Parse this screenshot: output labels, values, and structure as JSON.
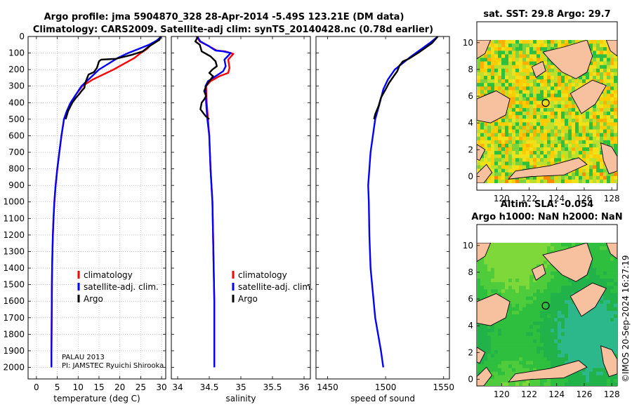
{
  "chart_data": [
    {
      "type": "line",
      "panel": "temperature",
      "title_line1": "Argo profile: jma 5904870_328 28-Apr-2014 -5.49S 123.21E (DM data)",
      "title_line2": "Climatology: CARS2009. Satellite-adj clim: synTS_20140428.nc (0.78d earlier)",
      "xlabel": "temperature (deg C)",
      "xlim": [
        -2,
        31
      ],
      "xticks": [
        0,
        5,
        10,
        15,
        20,
        25,
        30
      ],
      "ylim": [
        0,
        2070
      ],
      "yticks": [
        0,
        100,
        200,
        300,
        400,
        500,
        600,
        700,
        800,
        900,
        1000,
        1100,
        1200,
        1300,
        1400,
        1500,
        1600,
        1700,
        1800,
        1900,
        2000
      ],
      "grid": true,
      "legend": [
        "climatology",
        "satellite-adj. clim.",
        "Argo"
      ],
      "legend_colors": [
        "#ff0000",
        "#0000ff",
        "#000000"
      ],
      "annotation_1": "PALAU 2013",
      "annotation_2": "PI: JAMSTEC Ryuichi Shirooka",
      "series": [
        {
          "name": "climatology",
          "color": "#ff0000",
          "x": [
            29.8,
            29.0,
            27.5,
            26.5,
            25.0,
            23.5,
            18.5,
            13.5,
            11.0,
            9.5,
            8.2,
            7.3,
            6.6,
            6.0,
            5.5,
            5.0,
            4.6,
            4.3,
            4.1,
            3.95,
            3.85,
            3.75,
            3.7,
            3.65,
            3.6,
            3.6
          ],
          "y": [
            0,
            25,
            50,
            75,
            100,
            130,
            200,
            260,
            300,
            350,
            400,
            450,
            500,
            600,
            700,
            800,
            900,
            1000,
            1100,
            1200,
            1300,
            1400,
            1500,
            1700,
            1900,
            2000
          ]
        },
        {
          "name": "satellite-adj. clim.",
          "color": "#0000ff",
          "x": [
            30.0,
            28.8,
            27.0,
            24.5,
            22.0,
            19.5,
            15.0,
            12.5,
            10.8,
            9.5,
            8.2,
            7.3,
            6.6,
            6.0,
            5.5,
            5.0,
            4.6,
            4.3,
            4.1,
            3.95,
            3.85,
            3.75,
            3.7,
            3.65,
            3.6,
            3.6
          ],
          "y": [
            0,
            25,
            50,
            75,
            100,
            130,
            200,
            260,
            300,
            350,
            400,
            450,
            500,
            600,
            700,
            800,
            900,
            1000,
            1100,
            1200,
            1300,
            1400,
            1500,
            1700,
            1900,
            2000
          ]
        },
        {
          "name": "Argo",
          "color": "#000000",
          "x": [
            29.8,
            29.5,
            27.0,
            25.5,
            23.0,
            19.0,
            15.5,
            15.0,
            14.5,
            13.8,
            12.5,
            11.7,
            11.5,
            10.8,
            10.2,
            9.5,
            8.6,
            7.6,
            7.0
          ],
          "y": [
            0,
            20,
            60,
            90,
            110,
            135,
            140,
            150,
            190,
            215,
            230,
            280,
            310,
            330,
            350,
            370,
            400,
            450,
            500
          ]
        }
      ]
    },
    {
      "type": "line",
      "panel": "salinity",
      "xlabel": "salinity",
      "xlim": [
        33.9,
        36.1
      ],
      "xticks": [
        34,
        34.5,
        35,
        35.5,
        36
      ],
      "xticklabels": [
        "34",
        "34.5",
        "35",
        "35.5",
        "36"
      ],
      "ylim": [
        0,
        2070
      ],
      "legend": [
        "climatology",
        "satellite-adj. clim.",
        "Argo"
      ],
      "legend_colors": [
        "#ff0000",
        "#0000ff",
        "#000000"
      ],
      "series": [
        {
          "name": "climatology",
          "color": "#ff0000",
          "x": [
            34.3,
            34.35,
            34.5,
            34.62,
            34.75,
            34.88,
            34.8,
            34.82,
            34.8,
            34.66,
            34.52,
            34.45,
            34.46,
            34.48,
            34.5,
            34.52,
            34.55,
            34.56,
            34.57,
            34.58,
            34.58,
            34.58
          ],
          "y": [
            0,
            30,
            60,
            85,
            90,
            105,
            140,
            190,
            220,
            240,
            270,
            300,
            400,
            500,
            600,
            800,
            1000,
            1200,
            1400,
            1600,
            1800,
            2000
          ]
        },
        {
          "name": "satellite-adj. clim.",
          "color": "#0000ff",
          "x": [
            34.31,
            34.36,
            34.5,
            34.6,
            34.72,
            34.84,
            34.74,
            34.76,
            34.72,
            34.6,
            34.48,
            34.44,
            34.45,
            34.47,
            34.5,
            34.52,
            34.55,
            34.56,
            34.57,
            34.58,
            34.58,
            34.58
          ],
          "y": [
            0,
            30,
            60,
            85,
            90,
            100,
            140,
            180,
            210,
            240,
            270,
            300,
            400,
            500,
            600,
            800,
            1000,
            1200,
            1400,
            1600,
            1800,
            2000
          ]
        },
        {
          "name": "Argo",
          "color": "#000000",
          "x": [
            34.32,
            34.28,
            34.35,
            34.38,
            34.52,
            34.6,
            34.62,
            34.55,
            34.5,
            34.56,
            34.52,
            34.48,
            34.45,
            34.42,
            34.45,
            34.42,
            34.38,
            34.36,
            34.42,
            34.44,
            34.5
          ],
          "y": [
            0,
            30,
            50,
            90,
            120,
            150,
            180,
            200,
            220,
            240,
            260,
            280,
            300,
            330,
            360,
            380,
            400,
            440,
            470,
            480,
            500
          ]
        }
      ]
    },
    {
      "type": "line",
      "panel": "sound speed",
      "xlabel": "speed of sound",
      "xlim": [
        1440,
        1555
      ],
      "xticks": [
        1450,
        1500,
        1550
      ],
      "ylim": [
        0,
        2070
      ],
      "series": [
        {
          "name": "satellite-adj. clim.",
          "color": "#0000ff",
          "x": [
            1545,
            1538,
            1530,
            1522,
            1515,
            1508,
            1502,
            1498,
            1495,
            1491,
            1489,
            1487,
            1486,
            1485,
            1485.5,
            1486,
            1487,
            1489,
            1491,
            1493.5,
            1496,
            1498
          ],
          "y": [
            0,
            40,
            80,
            120,
            160,
            200,
            260,
            320,
            400,
            500,
            600,
            700,
            800,
            900,
            1000,
            1200,
            1400,
            1550,
            1700,
            1800,
            1900,
            2000
          ]
        },
        {
          "name": "Argo",
          "color": "#000000",
          "x": [
            1545,
            1540,
            1530,
            1520,
            1515,
            1512,
            1510,
            1507,
            1503,
            1500,
            1496,
            1494,
            1491,
            1490
          ],
          "y": [
            0,
            40,
            90,
            135,
            150,
            175,
            210,
            240,
            280,
            320,
            370,
            420,
            470,
            500
          ]
        }
      ]
    },
    {
      "type": "heatmap",
      "panel": "sst map",
      "title": "sat. SST: 29.8 Argo: 29.7",
      "xlim": [
        118.2,
        128.4
      ],
      "ylim": [
        -0.5,
        10.2
      ],
      "xticks": [
        120,
        122,
        124,
        126,
        128
      ],
      "yticks": [
        0,
        2,
        4,
        6,
        8,
        10
      ],
      "float_position": [
        123.2,
        5.5
      ]
    },
    {
      "type": "heatmap",
      "panel": "sla map",
      "title_line1": "Altim. SLA: -0.054",
      "title_line2": "Argo h1000: NaN h2000: NaN",
      "xlim": [
        118.2,
        128.4
      ],
      "ylim": [
        -0.5,
        10.2
      ],
      "xticks": [
        120,
        122,
        124,
        126,
        128
      ],
      "yticks": [
        0,
        2,
        4,
        6,
        8,
        10
      ],
      "float_position": [
        123.2,
        5.5
      ]
    }
  ],
  "footer": {
    "stamp": "©IMOS 20-Sep-2024 16:27:19"
  },
  "palette": {
    "land": "#f7c1a0",
    "sst_base": "#ffd400",
    "sla_base": "#2fbf3f"
  }
}
